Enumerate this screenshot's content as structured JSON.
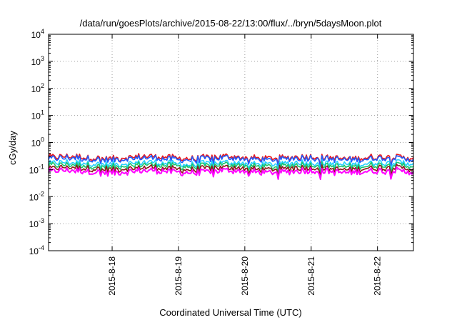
{
  "chart_data": {
    "type": "line",
    "title": "/data/run/goesPlots/archive/2015-08-22/13:00/flux/../bryn/5daysMoon.plot",
    "xlabel": "Coordinated Universal Time (UTC)",
    "ylabel": "cGy/day",
    "y_scale": "log",
    "ylim": [
      0.0001,
      10000
    ],
    "xlim": [
      "2015-08-17T01:00",
      "2015-08-22T13:00"
    ],
    "y_ticks": [
      {
        "base": "10",
        "exp": "-4"
      },
      {
        "base": "10",
        "exp": "-3"
      },
      {
        "base": "10",
        "exp": "-2"
      },
      {
        "base": "10",
        "exp": "-1"
      },
      {
        "base": "10",
        "exp": "0"
      },
      {
        "base": "10",
        "exp": "1"
      },
      {
        "base": "10",
        "exp": "2"
      },
      {
        "base": "10",
        "exp": "3"
      },
      {
        "base": "10",
        "exp": "4"
      }
    ],
    "x_ticks": [
      {
        "label": "2015-8-18",
        "value": "2015-08-18T00:00"
      },
      {
        "label": "2015-8-19",
        "value": "2015-08-19T00:00"
      },
      {
        "label": "2015-8-20",
        "value": "2015-08-20T00:00"
      },
      {
        "label": "2015-8-21",
        "value": "2015-08-21T00:00"
      },
      {
        "label": "2015-8-22",
        "value": "2015-08-22T00:00"
      }
    ],
    "grid": true,
    "series": [
      {
        "color": "#e8151c",
        "level": 0.28
      },
      {
        "color": "#1f5bff",
        "level": 0.25
      },
      {
        "color": "#22d0ff",
        "level": 0.17
      },
      {
        "color": "#19c56b",
        "level": 0.14
      },
      {
        "color": "#8b1a1a",
        "level": 0.11
      },
      {
        "color": "#ff00ff",
        "level": 0.085
      }
    ]
  }
}
